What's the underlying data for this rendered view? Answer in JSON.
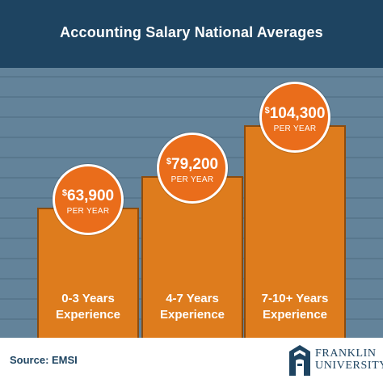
{
  "title": "Accounting Salary National Averages",
  "source": "Source: EMSI",
  "logo": {
    "line1": "FRANKLIN",
    "line2": "UNIVERSITY"
  },
  "unit_label": "PER YEAR",
  "currency_symbol": "$",
  "colors": {
    "header": "#1e4461",
    "plot_bg": "#63839a",
    "bar": "#de7c1d",
    "badge": "#ea6d1b",
    "text": "#ffffff"
  },
  "chart_data": {
    "type": "bar",
    "title": "Accounting Salary National Averages",
    "xlabel": "",
    "ylabel": "",
    "categories": [
      "0-3 Years Experience",
      "4-7 Years Experience",
      "7-10+ Years Experience"
    ],
    "category_lines": [
      [
        "0-3 Years",
        "Experience"
      ],
      [
        "4-7 Years",
        "Experience"
      ],
      [
        "7-10+ Years",
        "Experience"
      ]
    ],
    "values": [
      63900,
      79200,
      104300
    ],
    "value_labels": [
      "63,900",
      "79,200",
      "104,300"
    ],
    "ylim": [
      0,
      130000
    ],
    "grid": true
  }
}
